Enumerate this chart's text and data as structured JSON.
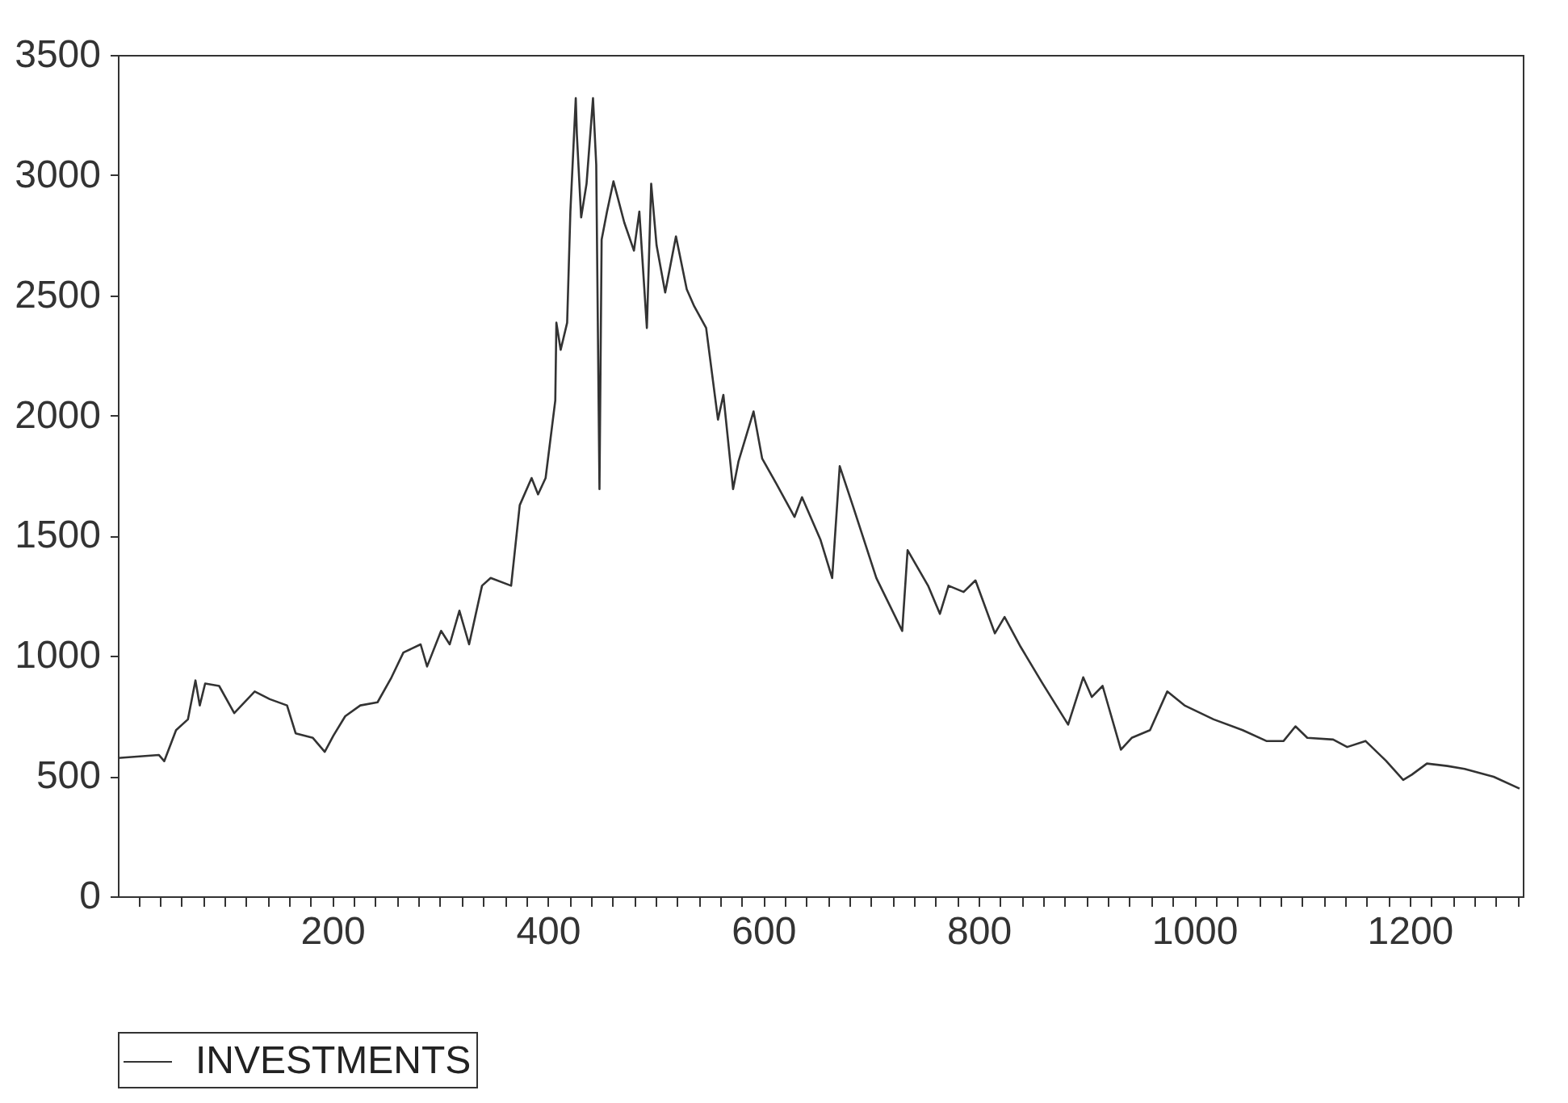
{
  "chart_data": {
    "type": "line",
    "x": [
      1,
      39,
      44,
      55,
      66,
      73,
      77,
      82,
      95,
      109,
      128,
      142,
      158,
      166,
      182,
      193,
      201,
      212,
      226,
      242,
      255,
      266,
      282,
      288,
      301,
      309,
      318,
      327,
      339,
      347,
      366,
      374,
      385,
      391,
      398,
      407,
      408,
      412,
      418,
      421,
      426,
      427,
      431,
      436,
      442,
      445,
      448,
      450,
      455,
      461,
      471,
      480,
      485,
      492,
      496,
      501,
      509,
      519,
      529,
      536,
      547,
      558,
      563,
      572,
      577,
      591,
      599,
      612,
      629,
      636,
      653,
      664,
      671,
      683,
      705,
      729,
      734,
      753,
      764,
      772,
      786,
      797,
      815,
      824,
      839,
      859,
      883,
      897,
      905,
      915,
      932,
      942,
      959,
      975,
      991,
      1018,
      1045,
      1067,
      1083,
      1094,
      1105,
      1129,
      1142,
      1159,
      1178,
      1194,
      1202,
      1216,
      1235,
      1251,
      1278,
      1302
    ],
    "series": [
      {
        "name": "INVESTMENTS",
        "color": "#333333",
        "values": [
          575,
          588,
          562,
          691,
          736,
          898,
          794,
          885,
          875,
          762,
          852,
          820,
          794,
          678,
          659,
          601,
          668,
          749,
          794,
          807,
          911,
          1014,
          1048,
          956,
          1104,
          1048,
          1188,
          1048,
          1292,
          1324,
          1292,
          1627,
          1740,
          1672,
          1740,
          2063,
          2386,
          2273,
          2386,
          2848,
          3320,
          3171,
          2824,
          2964,
          3320,
          3043,
          1694,
          2732,
          2848,
          2974,
          2803,
          2686,
          2848,
          2364,
          2964,
          2708,
          2512,
          2745,
          2525,
          2454,
          2364,
          1983,
          2086,
          1694,
          1808,
          2017,
          1821,
          1718,
          1578,
          1660,
          1485,
          1324,
          1789,
          1627,
          1324,
          1104,
          1440,
          1292,
          1175,
          1292,
          1266,
          1314,
          1094,
          1162,
          1037,
          887,
          714,
          911,
          829,
          875,
          610,
          659,
          691,
          852,
          794,
          736,
          691,
          646,
          646,
          707,
          659,
          652,
          621,
          646,
          564,
          484,
          506,
          552,
          542,
          530,
          497,
          448
        ]
      }
    ],
    "xlim": [
      1,
      1305
    ],
    "xticks": [
      {
        "value": 20,
        "label": null
      },
      {
        "value": 40,
        "label": null
      },
      {
        "value": 60,
        "label": null
      },
      {
        "value": 80,
        "label": null
      },
      {
        "value": 100,
        "label": null
      },
      {
        "value": 120,
        "label": null
      },
      {
        "value": 140,
        "label": null
      },
      {
        "value": 160,
        "label": null
      },
      {
        "value": 180,
        "label": null
      },
      200,
      {
        "value": 220,
        "label": null
      },
      {
        "value": 240,
        "label": null
      },
      {
        "value": 260,
        "label": null
      },
      {
        "value": 280,
        "label": null
      },
      {
        "value": 300,
        "label": null
      },
      {
        "value": 320,
        "label": null
      },
      {
        "value": 340,
        "label": null
      },
      {
        "value": 360,
        "label": null
      },
      {
        "value": 380,
        "label": null
      },
      400,
      {
        "value": 420,
        "label": null
      },
      {
        "value": 440,
        "label": null
      },
      {
        "value": 460,
        "label": null
      },
      {
        "value": 480,
        "label": null
      },
      {
        "value": 500,
        "label": null
      },
      {
        "value": 520,
        "label": null
      },
      {
        "value": 540,
        "label": null
      },
      {
        "value": 560,
        "label": null
      },
      {
        "value": 580,
        "label": null
      },
      600,
      {
        "value": 620,
        "label": null
      },
      {
        "value": 640,
        "label": null
      },
      {
        "value": 660,
        "label": null
      },
      {
        "value": 680,
        "label": null
      },
      {
        "value": 700,
        "label": null
      },
      {
        "value": 720,
        "label": null
      },
      {
        "value": 740,
        "label": null
      },
      {
        "value": 760,
        "label": null
      },
      {
        "value": 780,
        "label": null
      },
      800,
      {
        "value": 820,
        "label": null
      },
      {
        "value": 840,
        "label": null
      },
      {
        "value": 860,
        "label": null
      },
      {
        "value": 880,
        "label": null
      },
      {
        "value": 900,
        "label": null
      },
      {
        "value": 920,
        "label": null
      },
      {
        "value": 940,
        "label": null
      },
      {
        "value": 960,
        "label": null
      },
      {
        "value": 980,
        "label": null
      },
      1000,
      {
        "value": 1020,
        "label": null
      },
      {
        "value": 1040,
        "label": null
      },
      {
        "value": 1060,
        "label": null
      },
      {
        "value": 1080,
        "label": null
      },
      {
        "value": 1100,
        "label": null
      },
      {
        "value": 1120,
        "label": null
      },
      {
        "value": 1140,
        "label": null
      },
      {
        "value": 1160,
        "label": null
      },
      {
        "value": 1180,
        "label": null
      },
      1200,
      {
        "value": 1220,
        "label": null
      },
      {
        "value": 1240,
        "label": null
      },
      {
        "value": 1260,
        "label": null
      },
      {
        "value": 1280,
        "label": null
      },
      {
        "value": 1300,
        "label": null
      }
    ],
    "ylim": [
      0,
      3500
    ],
    "yticks": [
      0,
      500,
      1000,
      1500,
      2000,
      2500,
      3000,
      3500
    ],
    "grid": false,
    "legend": "bottom",
    "marker": "none",
    "line_style": "solid"
  }
}
